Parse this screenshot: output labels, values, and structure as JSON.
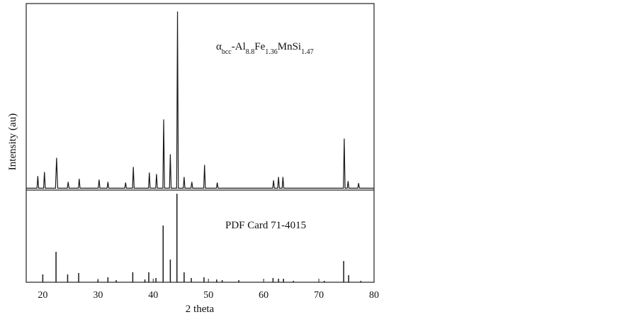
{
  "chart_data": [
    {
      "type": "line",
      "ylabel": "Intensity (au)",
      "color": "#1a1a1a",
      "annotation": [
        {
          "text": "α"
        },
        {
          "text": "bcc",
          "sub": true
        },
        {
          "text": "-Al"
        },
        {
          "text": "8.8",
          "sub": true
        },
        {
          "text": "Fe"
        },
        {
          "text": "1.36",
          "sub": true
        },
        {
          "text": "MnSi"
        },
        {
          "text": "1.47",
          "sub": true
        }
      ],
      "xlim": [
        17,
        80
      ],
      "ylim": [
        0,
        100
      ],
      "x": [
        17,
        18.95,
        19.1,
        19.25,
        20.15,
        20.3,
        20.45,
        22.3,
        22.5,
        22.7,
        24.45,
        24.6,
        24.75,
        26.45,
        26.6,
        26.75,
        30.05,
        30.2,
        30.35,
        31.65,
        31.8,
        31.95,
        34.85,
        35,
        35.15,
        36.25,
        36.4,
        36.55,
        39.15,
        39.3,
        39.45,
        40.45,
        40.6,
        40.75,
        41.75,
        41.9,
        42.05,
        42.95,
        43.1,
        43.25,
        44.25,
        44.4,
        44.55,
        45.45,
        45.6,
        45.75,
        46.85,
        47,
        47.15,
        49.15,
        49.3,
        49.45,
        51.45,
        51.6,
        51.75,
        61.65,
        61.8,
        61.95,
        62.55,
        62.7,
        62.85,
        63.35,
        63.5,
        63.65,
        74.45,
        74.6,
        74.75,
        75.15,
        75.3,
        75.45,
        77.05,
        77.2,
        77.35,
        80
      ],
      "values": [
        1,
        1,
        7.5,
        1,
        1,
        9.7,
        1,
        1,
        17.3,
        1,
        1,
        4.4,
        1,
        1,
        6,
        1,
        1,
        5.6,
        1,
        1,
        4.4,
        1,
        1,
        4,
        1,
        1,
        12.4,
        1,
        1,
        9.4,
        1,
        1,
        8.6,
        1,
        1,
        37.9,
        1,
        1,
        19.2,
        1,
        1,
        95.7,
        1,
        1,
        7,
        1,
        1,
        4.4,
        1,
        1,
        13.5,
        1,
        1,
        4,
        1,
        1,
        5.2,
        1,
        1,
        7,
        1,
        1,
        7,
        1,
        1,
        27.6,
        1,
        1,
        4.8,
        1,
        1,
        3.7,
        1,
        1
      ]
    },
    {
      "type": "bar",
      "annotation": [
        {
          "text": "PDF Card 71-4015"
        }
      ],
      "xlabel": "2 theta",
      "color": "#1a1a1a",
      "xlim": [
        17,
        80
      ],
      "ylim": [
        0,
        100
      ],
      "xticks": [
        20,
        30,
        40,
        50,
        60,
        70,
        80
      ],
      "x": [
        20,
        22.4,
        24.5,
        26.5,
        30,
        31.8,
        33.3,
        36.3,
        38.5,
        39.2,
        40.5,
        41.8,
        43.1,
        44.3,
        45.6,
        46.9,
        49.2,
        51.5,
        52.5,
        55.5,
        61.7,
        62.7,
        63.6,
        65.4,
        71,
        74.5,
        75.4,
        77.6
      ],
      "values": [
        8.5,
        33,
        8.5,
        10,
        2.3,
        5.4,
        2.3,
        10.8,
        3,
        10.8,
        4.6,
        61.5,
        24.6,
        96,
        10.8,
        4.6,
        5.4,
        3,
        2.3,
        2.3,
        4.6,
        3.8,
        3.8,
        1.5,
        1.5,
        23,
        7.7,
        1.5
      ]
    }
  ]
}
